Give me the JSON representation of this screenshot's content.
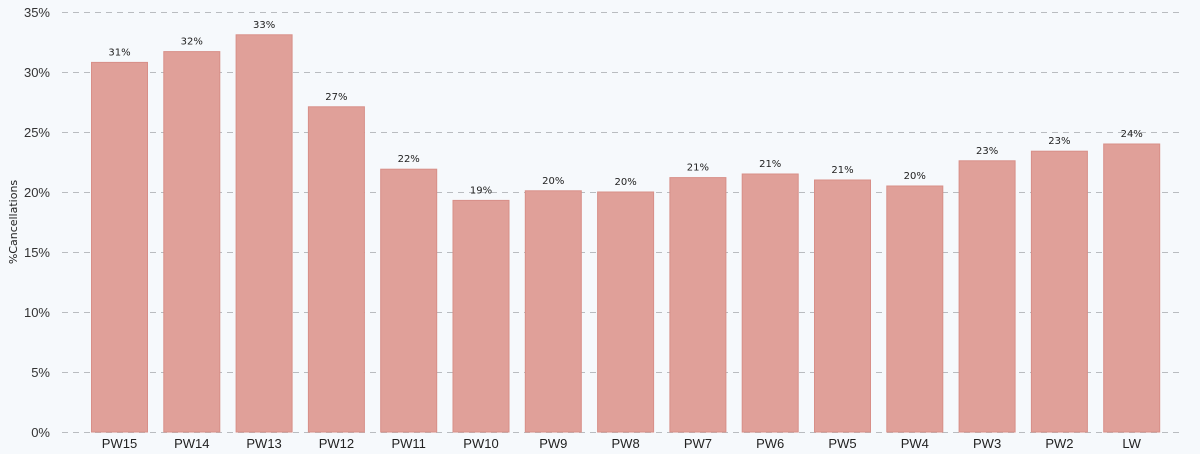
{
  "chart_data": {
    "type": "bar",
    "categories": [
      "PW15",
      "PW14",
      "PW13",
      "PW12",
      "PW11",
      "PW10",
      "PW9",
      "PW8",
      "PW7",
      "PW6",
      "PW5",
      "PW4",
      "PW3",
      "PW2",
      "LW"
    ],
    "values": [
      30.8,
      31.7,
      33.1,
      27.1,
      21.9,
      19.3,
      20.1,
      20.0,
      21.2,
      21.5,
      21.0,
      20.5,
      22.6,
      23.4,
      24.0
    ],
    "value_labels": [
      "31%",
      "32%",
      "33%",
      "27%",
      "22%",
      "19%",
      "20%",
      "20%",
      "21%",
      "21%",
      "21%",
      "20%",
      "23%",
      "23%",
      "24%"
    ],
    "title": "",
    "xlabel": "",
    "ylabel": "%Cancellations",
    "ylim": [
      0,
      35
    ],
    "y_ticks": [
      0,
      5,
      10,
      15,
      20,
      25,
      30,
      35
    ],
    "y_tick_labels": [
      "0%",
      "5%",
      "10%",
      "15%",
      "20%",
      "25%",
      "30%",
      "35%"
    ],
    "grid": true,
    "legend": "none",
    "colors": {
      "bar_fill": "#e0a099",
      "bar_stroke": "#d88f88",
      "background": "#f6f9fc",
      "grid": "#b9bcc0"
    }
  }
}
